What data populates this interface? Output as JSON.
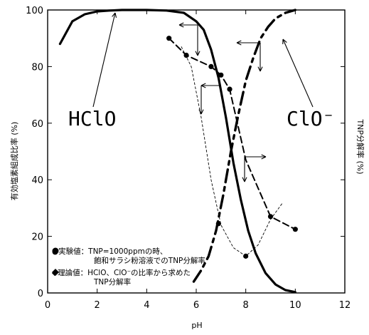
{
  "chart_data": {
    "type": "line",
    "xlabel": "pH",
    "ylabel_left": "有効塩素組成比率 (%)",
    "ylabel_right": "TNP分解率 (%)",
    "xlim": [
      0,
      12
    ],
    "ylim": [
      0,
      100
    ],
    "xticks": [
      "0",
      "2",
      "4",
      "6",
      "8",
      "10",
      "12"
    ],
    "yticks": [
      "0",
      "20",
      "40",
      "60",
      "80",
      "100"
    ],
    "series": [
      {
        "name": "HClO",
        "style": "solid",
        "x": [
          0.5,
          1.0,
          1.5,
          2.0,
          2.5,
          3.0,
          4.0,
          4.8,
          5.5,
          6.0,
          6.3,
          6.6,
          6.9,
          7.2,
          7.5,
          7.8,
          8.1,
          8.4,
          8.8,
          9.2,
          9.6,
          10.0
        ],
        "values": [
          88,
          96,
          98.5,
          99.5,
          99.8,
          100,
          100,
          99.8,
          99,
          96,
          93,
          86,
          76,
          62,
          46,
          33,
          22,
          14,
          7,
          3,
          1,
          0.3
        ]
      },
      {
        "name": "ClO⁻",
        "style": "dash",
        "x": [
          5.9,
          6.2,
          6.5,
          6.8,
          7.1,
          7.4,
          7.7,
          8.0,
          8.3,
          8.6,
          8.9,
          9.2,
          9.6,
          10.0
        ],
        "values": [
          4,
          8,
          13,
          22,
          35,
          50,
          63,
          75,
          83,
          90,
          94,
          97,
          99,
          100
        ]
      },
      {
        "name": "実験値",
        "style": "dash-marker",
        "x": [
          4.9,
          5.6,
          6.6,
          7.0,
          7.35,
          8.0,
          9.0,
          10.0
        ],
        "values": [
          90,
          84,
          80,
          77,
          72,
          47,
          27,
          22.5
        ]
      },
      {
        "name": "理論値",
        "style": "thin-dash",
        "x": [
          5.4,
          5.8,
          6.2,
          6.6,
          7.0,
          7.5,
          8.0,
          8.5,
          9.0,
          9.5
        ],
        "values": [
          87,
          80,
          62,
          40,
          24,
          16,
          13,
          17,
          26,
          32
        ]
      }
    ],
    "markers": [
      {
        "x": 4.9,
        "y": 90
      },
      {
        "x": 5.6,
        "y": 84
      },
      {
        "x": 6.6,
        "y": 80
      },
      {
        "x": 7.0,
        "y": 77
      },
      {
        "x": 7.35,
        "y": 72
      },
      {
        "x": 6.9,
        "y": 24.5
      },
      {
        "x": 8.0,
        "y": 13
      },
      {
        "x": 9.0,
        "y": 27
      },
      {
        "x": 10.0,
        "y": 22.5
      }
    ],
    "annotations": {
      "hclo_label": "HClO",
      "clo_label": "ClO⁻"
    },
    "legend": {
      "exp_label": "●実験値：TNP=1000ppmの時、",
      "exp_label2": "飽和サラシ粉溶液でのTNP分解率",
      "theory_label": "◆理論値：HClO、ClO⁻の比率から求めた",
      "theory_label2": "TNP分解率"
    },
    "colors": {
      "ink": "#000000",
      "background": "#ffffff"
    }
  }
}
